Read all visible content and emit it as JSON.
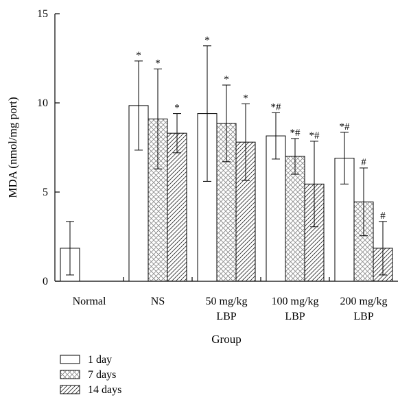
{
  "chart_data": {
    "type": "bar",
    "ylabel": "MDA (nmol/mg port)",
    "xlabel": "Group",
    "ylim": [
      0,
      15
    ],
    "yticks": [
      0,
      5,
      10,
      15
    ],
    "categories": [
      [
        "Normal"
      ],
      [
        "NS"
      ],
      [
        "50 mg/kg",
        "LBP"
      ],
      [
        "100 mg/kg",
        "LBP"
      ],
      [
        "200 mg/kg",
        "LBP"
      ]
    ],
    "series": [
      {
        "name": "1 day",
        "pattern": "none",
        "values": [
          1.85,
          9.85,
          9.4,
          8.15,
          6.9
        ],
        "errors": [
          1.5,
          2.5,
          3.8,
          1.3,
          1.45
        ],
        "marks": [
          "",
          "*",
          "*",
          "*#",
          "*#"
        ]
      },
      {
        "name": "7 days",
        "pattern": "crosshatch",
        "values": [
          null,
          9.1,
          8.85,
          7.0,
          4.45
        ],
        "errors": [
          null,
          2.8,
          2.15,
          1.0,
          1.9
        ],
        "marks": [
          "",
          "*",
          "*",
          "*#",
          "#"
        ]
      },
      {
        "name": "14 days",
        "pattern": "diagonal",
        "values": [
          null,
          8.3,
          7.8,
          5.45,
          1.85
        ],
        "errors": [
          null,
          1.1,
          2.15,
          2.4,
          1.5
        ],
        "marks": [
          "",
          "*",
          "*",
          "*#",
          "#"
        ]
      }
    ],
    "legend_placement": "bottom-left",
    "grid": false
  }
}
